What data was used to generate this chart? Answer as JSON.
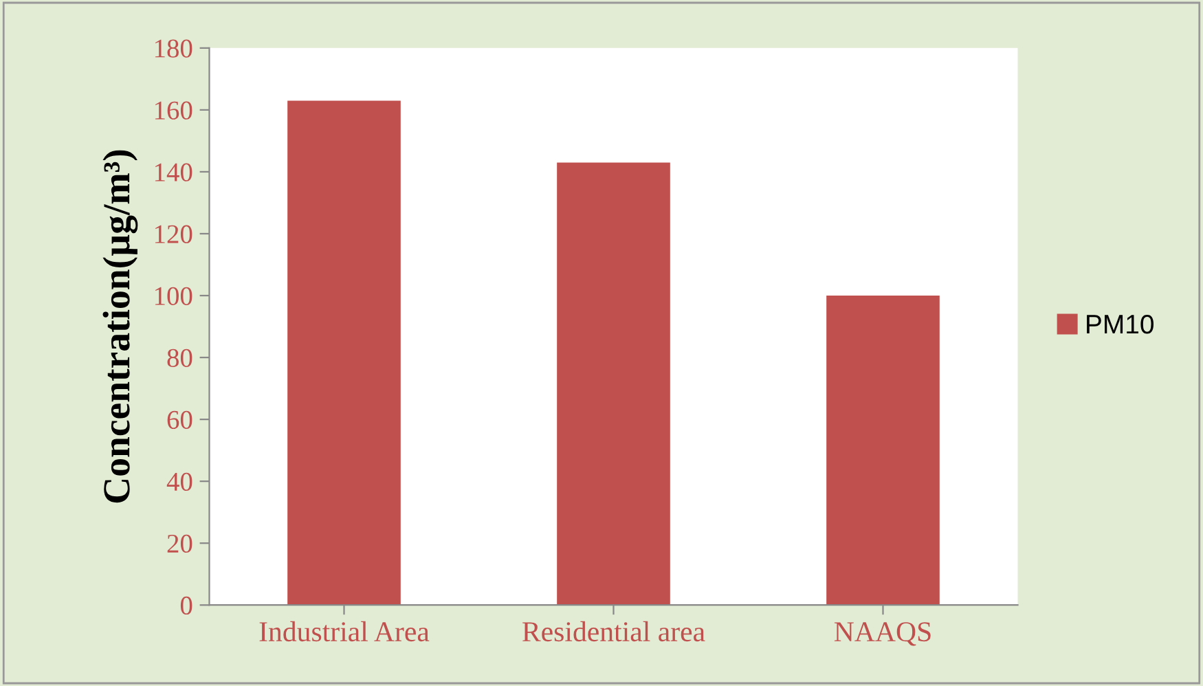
{
  "chart_data": {
    "type": "bar",
    "ylabel": "Concentration(µg/m³)",
    "categories": [
      "Industrial Area",
      "Residential area",
      "NAAQS"
    ],
    "series": [
      {
        "name": "PM10",
        "color": "#c0504d",
        "values": [
          163,
          143,
          100
        ]
      }
    ],
    "ylim": [
      0,
      180
    ],
    "yticks": [
      0,
      20,
      40,
      60,
      80,
      100,
      120,
      140,
      160,
      180
    ],
    "grid": false,
    "legend": "right"
  }
}
